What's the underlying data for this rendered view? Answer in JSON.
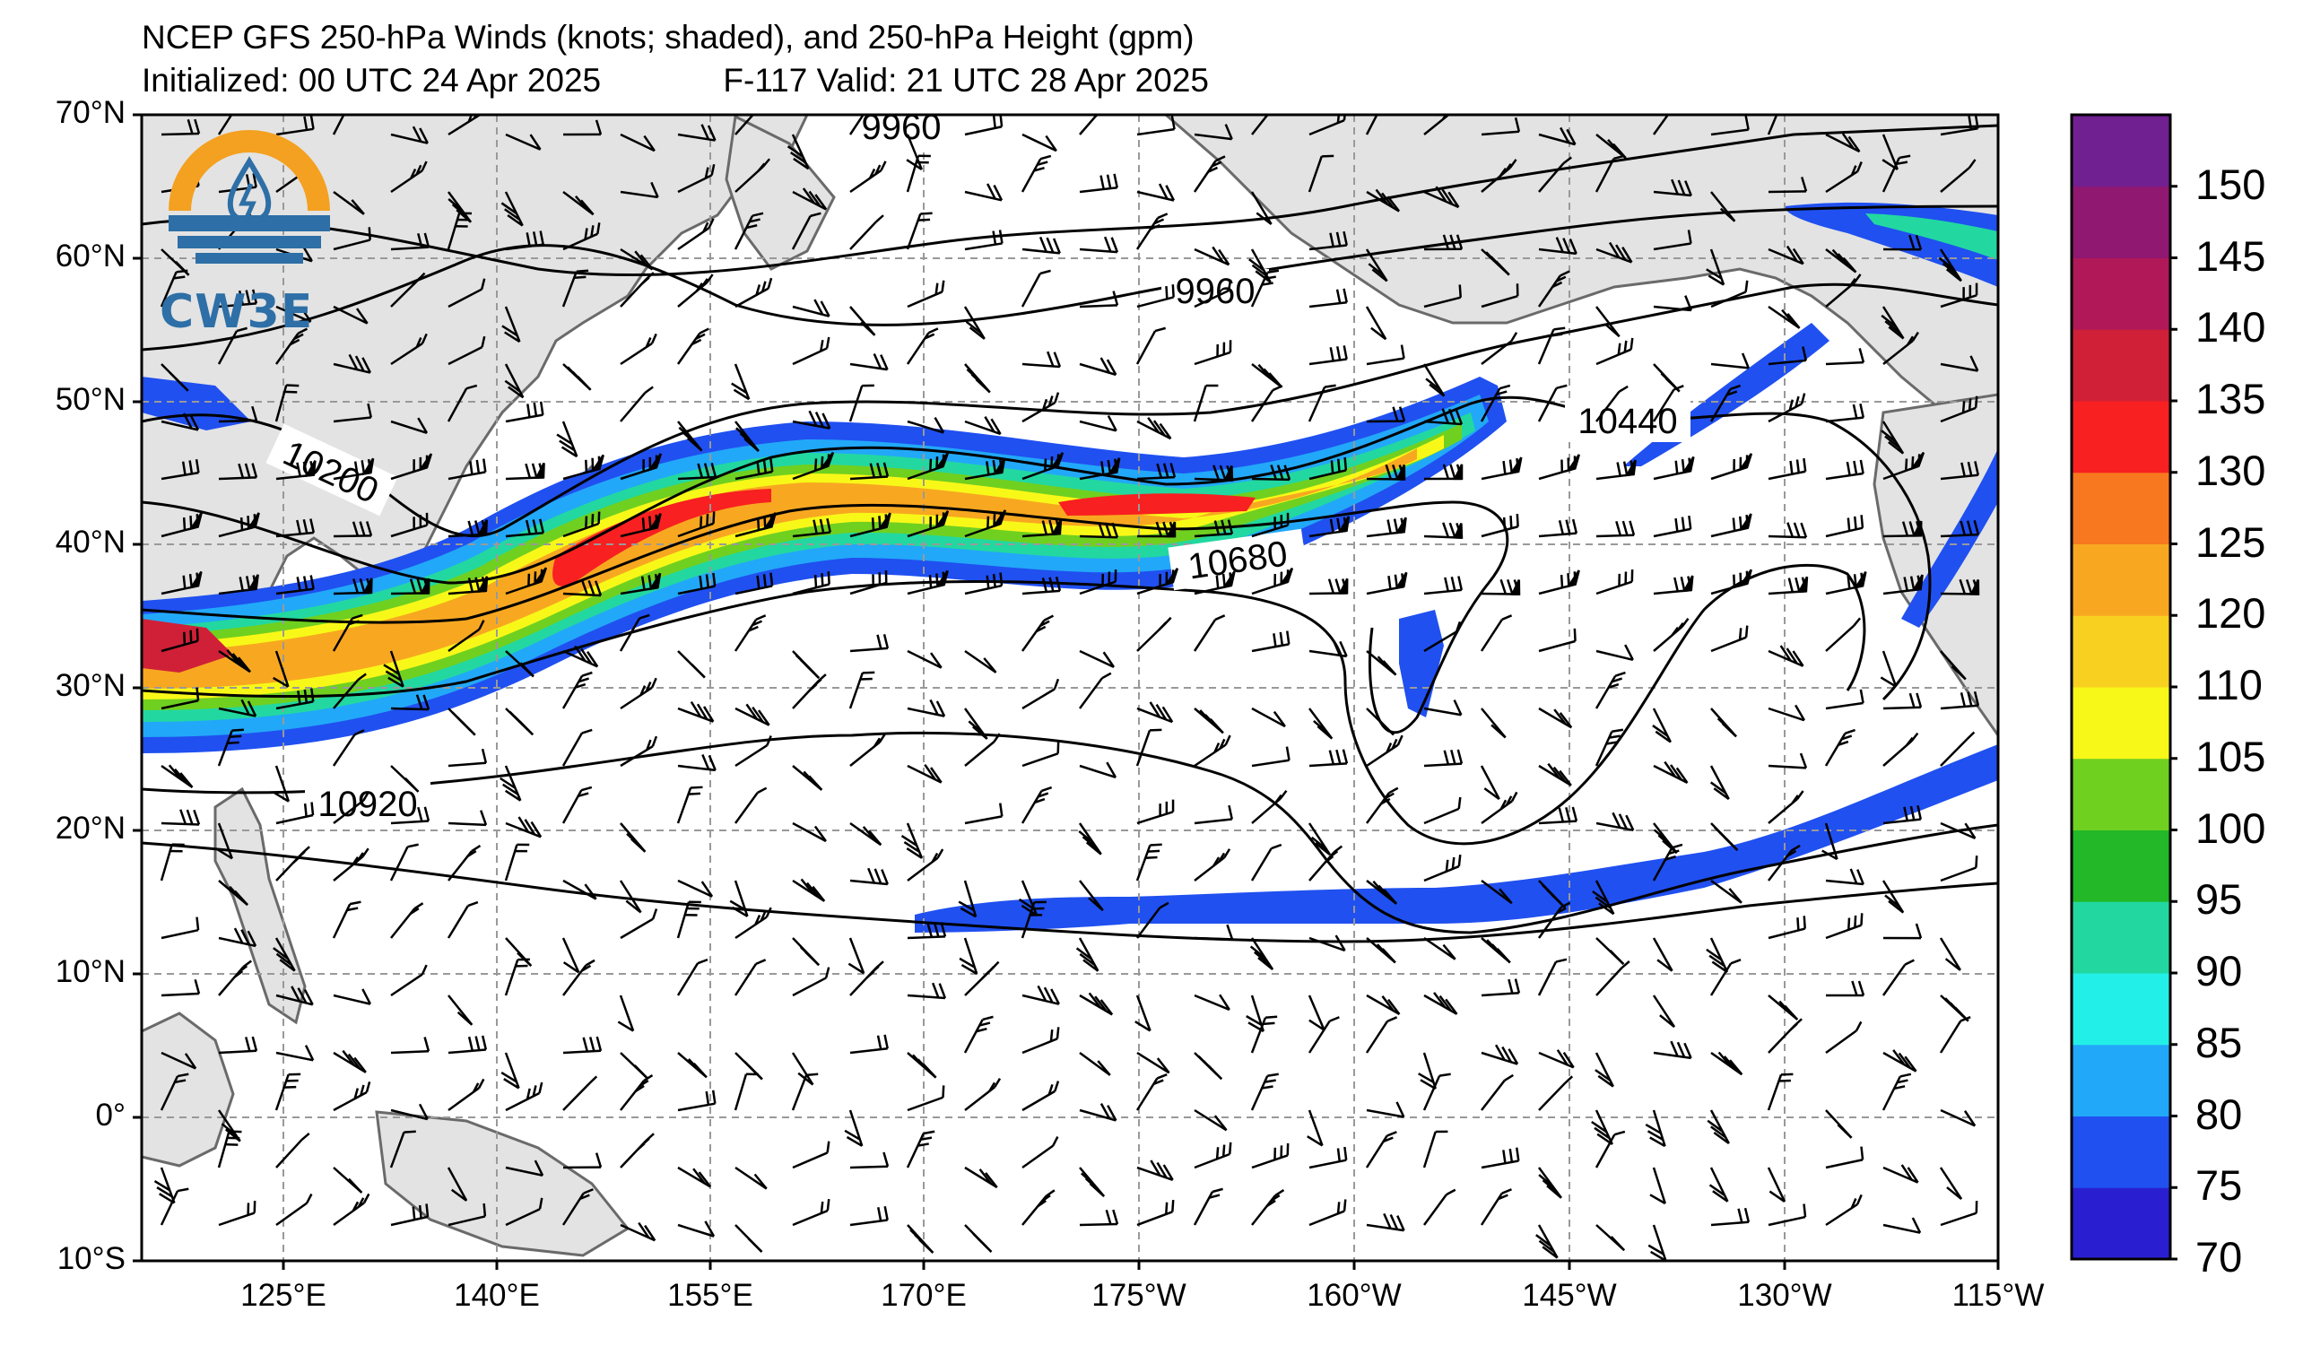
{
  "title": {
    "line1": "NCEP GFS 250-hPa Winds (knots; shaded), and 250-hPa Height (gpm)",
    "line2": "Initialized: 00 UTC 24 Apr 2025",
    "valid": "F-117  Valid: 21 UTC 28 Apr 2025"
  },
  "logo": {
    "text": "CW3E"
  },
  "map": {
    "lat_range": [
      -10,
      70
    ],
    "lon_labels": [
      "125°E",
      "140°E",
      "155°E",
      "170°E",
      "175°W",
      "160°W",
      "145°W",
      "130°W",
      "115°W"
    ],
    "lat_labels": [
      "70°N",
      "60°N",
      "50°N",
      "40°N",
      "30°N",
      "20°N",
      "10°N",
      "0°",
      "10°S"
    ],
    "contour_labels": [
      "9960",
      "9960",
      "10200",
      "10440",
      "10680",
      "10920"
    ],
    "land_color": "#e3e3e3",
    "ocean_color": "#ffffff",
    "grid_color": "#999999"
  },
  "colorbar": {
    "labels": [
      "150",
      "145",
      "140",
      "135",
      "130",
      "125",
      "120",
      "110",
      "105",
      "100",
      "95",
      "90",
      "85",
      "80",
      "75",
      "70"
    ],
    "colors": [
      "#2a1fd0",
      "#2050f0",
      "#22a8f8",
      "#22f0e8",
      "#22d8a0",
      "#22b828",
      "#70d020",
      "#f8f818",
      "#f8d020",
      "#f8a820",
      "#f87820",
      "#f82020",
      "#d02038",
      "#b01858",
      "#901870",
      "#702090"
    ]
  }
}
